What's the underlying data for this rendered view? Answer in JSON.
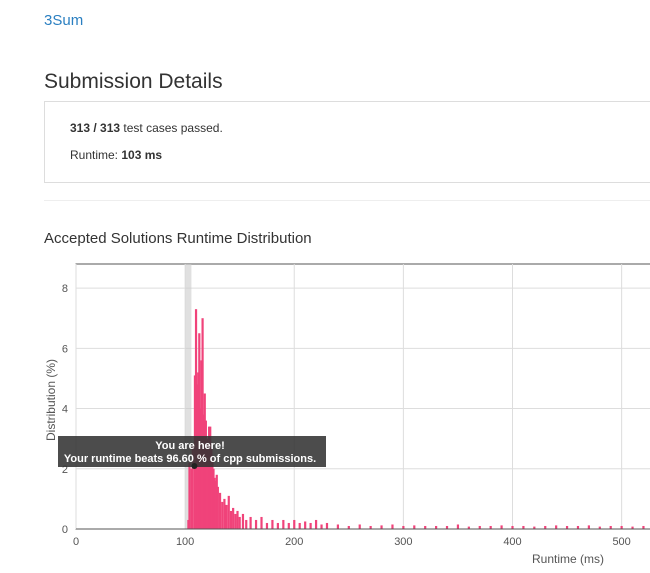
{
  "header": {
    "problem": "3Sum",
    "title": "Submission Details"
  },
  "details": {
    "passed": "313 / 313",
    "passed_text": "test cases passed.",
    "runtime_label": "Runtime:",
    "runtime_value": "103 ms"
  },
  "chart_data": {
    "type": "bar",
    "title": "Accepted Solutions Runtime Distribution",
    "x_label": "Runtime (ms)",
    "y_label": "Distribution (%)",
    "color": "#f0437a",
    "grid": true,
    "xlim": [
      0,
      526
    ],
    "ylim": [
      0,
      8.8
    ],
    "xticks": [
      0,
      100,
      200,
      300,
      400,
      500
    ],
    "yticks": [
      0,
      2,
      4,
      6,
      8
    ],
    "marker_x": 103,
    "tooltip": {
      "line1": "You are here!",
      "line2": "Your runtime beats 96.60 % of cpp submissions."
    },
    "x": [
      103,
      104,
      106,
      107,
      109,
      110,
      111,
      112,
      113,
      114,
      115,
      116,
      117,
      118,
      119,
      120,
      121,
      122,
      123,
      124,
      125,
      126,
      127,
      128,
      129,
      130,
      132,
      134,
      136,
      138,
      140,
      142,
      144,
      146,
      148,
      150,
      153,
      156,
      160,
      165,
      170,
      175,
      180,
      185,
      190,
      195,
      200,
      205,
      210,
      215,
      220,
      225,
      230,
      240,
      250,
      260,
      270,
      280,
      290,
      300,
      310,
      320,
      330,
      340,
      350,
      360,
      370,
      380,
      390,
      400,
      410,
      420,
      430,
      440,
      450,
      460,
      470,
      480,
      490,
      500,
      510,
      520
    ],
    "values": [
      0.3,
      2.2,
      2.0,
      2.8,
      5.1,
      7.3,
      4.8,
      5.2,
      6.5,
      4.0,
      5.6,
      7.0,
      3.8,
      4.5,
      3.6,
      3.0,
      2.5,
      3.4,
      3.4,
      2.7,
      2.3,
      2.0,
      1.7,
      1.6,
      1.8,
      1.4,
      1.2,
      0.9,
      1.0,
      0.8,
      1.1,
      0.6,
      0.7,
      0.5,
      0.6,
      0.4,
      0.5,
      0.3,
      0.4,
      0.3,
      0.4,
      0.2,
      0.3,
      0.2,
      0.3,
      0.2,
      0.3,
      0.2,
      0.25,
      0.2,
      0.3,
      0.15,
      0.2,
      0.15,
      0.1,
      0.15,
      0.1,
      0.12,
      0.15,
      0.1,
      0.12,
      0.1,
      0.1,
      0.1,
      0.15,
      0.08,
      0.1,
      0.1,
      0.12,
      0.1,
      0.1,
      0.08,
      0.1,
      0.12,
      0.1,
      0.1,
      0.12,
      0.08,
      0.1,
      0.1,
      0.08,
      0.1
    ]
  }
}
